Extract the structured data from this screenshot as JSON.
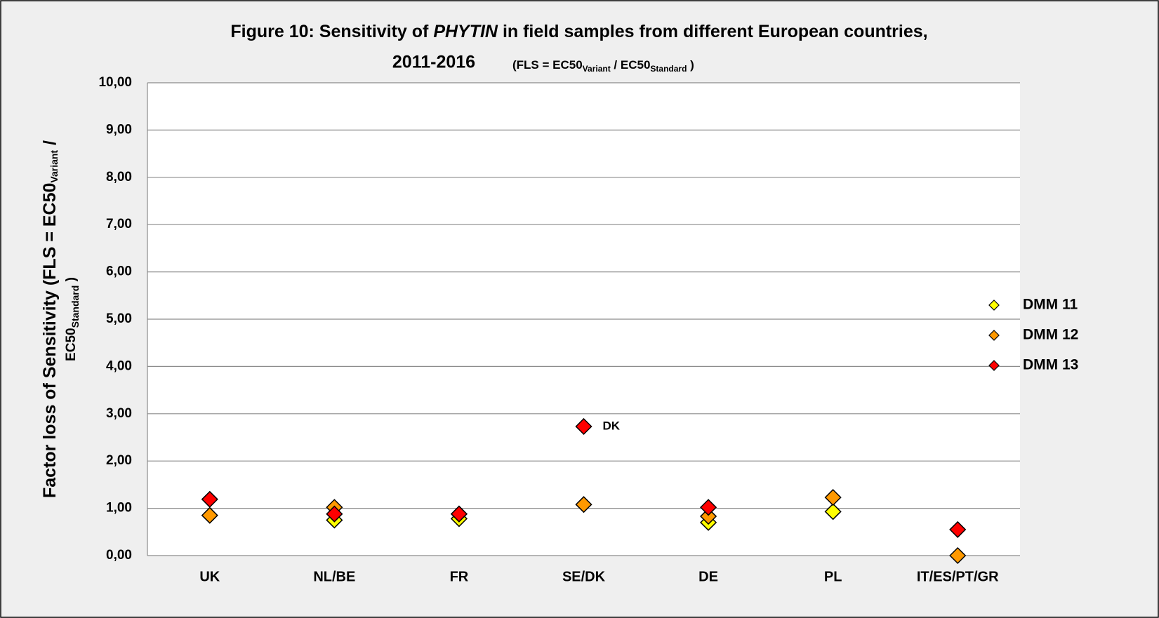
{
  "chart_data": {
    "type": "scatter",
    "title": {
      "line1": [
        "Figure 10: Sensitivity of ",
        "PHYTIN",
        " in field samples from different European countries,"
      ],
      "line2": "2011-2016",
      "formula": [
        "(FLS = EC50",
        "Variant",
        " / EC50",
        "Standard",
        " )"
      ]
    },
    "y_label": {
      "line1": [
        "Factor loss of Sensitivity (FLS = EC50",
        "Variant",
        " /"
      ],
      "line2": [
        "EC50",
        "Standard",
        " )"
      ]
    },
    "categories": [
      "UK",
      "NL/BE",
      "FR",
      "SE/DK",
      "DE",
      "PL",
      "IT/ES/PT/GR"
    ],
    "series": [
      {
        "name": "DMM 11",
        "color": "#ffff00",
        "values": [
          null,
          0.75,
          0.78,
          null,
          0.7,
          0.93,
          null
        ]
      },
      {
        "name": "DMM 12",
        "color": "#ff9900",
        "values": [
          0.85,
          1.02,
          0.88,
          1.08,
          0.83,
          1.23,
          0.0
        ]
      },
      {
        "name": "DMM 13",
        "color": "#ff0000",
        "values": [
          1.19,
          0.88,
          0.88,
          2.73,
          1.02,
          null,
          0.55
        ]
      }
    ],
    "annotations": [
      {
        "text": "DK",
        "category": "SE/DK",
        "series": "DMM 13"
      }
    ],
    "ylim": [
      0,
      10
    ],
    "yticks": [
      {
        "value": 0,
        "label": "0,00"
      },
      {
        "value": 1,
        "label": "1,00"
      },
      {
        "value": 2,
        "label": "2,00"
      },
      {
        "value": 3,
        "label": "3,00"
      },
      {
        "value": 4,
        "label": "4,00"
      },
      {
        "value": 5,
        "label": "5,00"
      },
      {
        "value": 6,
        "label": "6,00"
      },
      {
        "value": 7,
        "label": "7,00"
      },
      {
        "value": 8,
        "label": "8,00"
      },
      {
        "value": 9,
        "label": "9,00"
      },
      {
        "value": 10,
        "label": "10,00"
      }
    ],
    "grid": true,
    "legend": "right"
  }
}
